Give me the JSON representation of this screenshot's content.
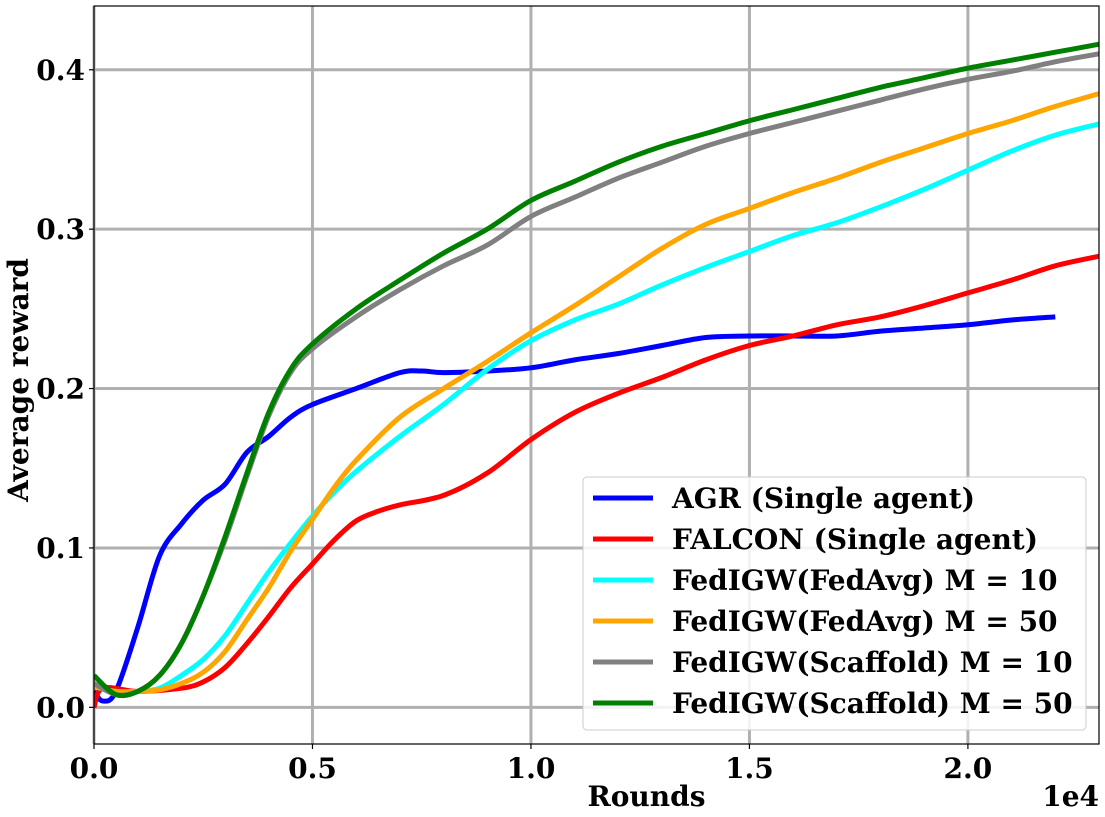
{
  "chart_data": {
    "type": "line",
    "title": "",
    "xlabel": "Rounds",
    "ylabel": "Average reward",
    "x_scale_note": "1e4",
    "xlim": [
      0,
      2.3
    ],
    "ylim": [
      -0.023,
      0.44
    ],
    "grid": true,
    "legend_position": "lower-right",
    "x_ticks": [
      0.0,
      0.5,
      1.0,
      1.5,
      2.0
    ],
    "x_tick_labels": [
      "0.0",
      "0.5",
      "1.0",
      "1.5",
      "2.0"
    ],
    "y_ticks": [
      0.0,
      0.1,
      0.2,
      0.3,
      0.4
    ],
    "y_tick_labels": [
      "0.0",
      "0.1",
      "0.2",
      "0.3",
      "0.4"
    ],
    "series": [
      {
        "name": "AGR (Single agent)",
        "color": "#0000ff",
        "points": [
          [
            0,
            0.01
          ],
          [
            0.02,
            0.004
          ],
          [
            0.05,
            0.01
          ],
          [
            0.1,
            0.05
          ],
          [
            0.15,
            0.095
          ],
          [
            0.2,
            0.115
          ],
          [
            0.25,
            0.13
          ],
          [
            0.3,
            0.14
          ],
          [
            0.35,
            0.16
          ],
          [
            0.4,
            0.17
          ],
          [
            0.45,
            0.182
          ],
          [
            0.5,
            0.19
          ],
          [
            0.6,
            0.2
          ],
          [
            0.7,
            0.21
          ],
          [
            0.75,
            0.211
          ],
          [
            0.8,
            0.21
          ],
          [
            0.9,
            0.211
          ],
          [
            1.0,
            0.213
          ],
          [
            1.1,
            0.218
          ],
          [
            1.2,
            0.222
          ],
          [
            1.3,
            0.227
          ],
          [
            1.4,
            0.232
          ],
          [
            1.5,
            0.233
          ],
          [
            1.6,
            0.233
          ],
          [
            1.7,
            0.233
          ],
          [
            1.8,
            0.236
          ],
          [
            1.9,
            0.238
          ],
          [
            2.0,
            0.24
          ],
          [
            2.1,
            0.243
          ],
          [
            2.2,
            0.245
          ]
        ]
      },
      {
        "name": "FALCON (Single agent)",
        "color": "#ff0000",
        "points": [
          [
            0,
            0.0
          ],
          [
            0.02,
            0.012
          ],
          [
            0.1,
            0.01
          ],
          [
            0.2,
            0.012
          ],
          [
            0.25,
            0.016
          ],
          [
            0.3,
            0.025
          ],
          [
            0.35,
            0.04
          ],
          [
            0.4,
            0.057
          ],
          [
            0.45,
            0.075
          ],
          [
            0.5,
            0.09
          ],
          [
            0.55,
            0.105
          ],
          [
            0.6,
            0.117
          ],
          [
            0.65,
            0.123
          ],
          [
            0.7,
            0.127
          ],
          [
            0.8,
            0.133
          ],
          [
            0.9,
            0.147
          ],
          [
            1.0,
            0.168
          ],
          [
            1.1,
            0.185
          ],
          [
            1.2,
            0.197
          ],
          [
            1.3,
            0.207
          ],
          [
            1.4,
            0.218
          ],
          [
            1.5,
            0.227
          ],
          [
            1.6,
            0.233
          ],
          [
            1.7,
            0.24
          ],
          [
            1.8,
            0.245
          ],
          [
            1.9,
            0.252
          ],
          [
            2.0,
            0.26
          ],
          [
            2.1,
            0.268
          ],
          [
            2.2,
            0.277
          ],
          [
            2.3,
            0.283
          ]
        ]
      },
      {
        "name": "FedIGW(FedAvg) M = 10",
        "color": "#00ffff",
        "points": [
          [
            0,
            0.013
          ],
          [
            0.05,
            0.01
          ],
          [
            0.1,
            0.01
          ],
          [
            0.15,
            0.012
          ],
          [
            0.2,
            0.02
          ],
          [
            0.25,
            0.03
          ],
          [
            0.3,
            0.045
          ],
          [
            0.35,
            0.065
          ],
          [
            0.4,
            0.085
          ],
          [
            0.45,
            0.103
          ],
          [
            0.5,
            0.12
          ],
          [
            0.55,
            0.135
          ],
          [
            0.6,
            0.148
          ],
          [
            0.7,
            0.17
          ],
          [
            0.8,
            0.19
          ],
          [
            0.9,
            0.212
          ],
          [
            1.0,
            0.23
          ],
          [
            1.1,
            0.243
          ],
          [
            1.2,
            0.253
          ],
          [
            1.3,
            0.265
          ],
          [
            1.4,
            0.276
          ],
          [
            1.5,
            0.286
          ],
          [
            1.6,
            0.296
          ],
          [
            1.7,
            0.304
          ],
          [
            1.8,
            0.314
          ],
          [
            1.9,
            0.325
          ],
          [
            2.0,
            0.337
          ],
          [
            2.1,
            0.349
          ],
          [
            2.2,
            0.359
          ],
          [
            2.3,
            0.366
          ]
        ]
      },
      {
        "name": "FedIGW(FedAvg) M = 50",
        "color": "#ffa500",
        "points": [
          [
            0,
            0.013
          ],
          [
            0.05,
            0.01
          ],
          [
            0.1,
            0.01
          ],
          [
            0.15,
            0.011
          ],
          [
            0.2,
            0.015
          ],
          [
            0.25,
            0.022
          ],
          [
            0.3,
            0.035
          ],
          [
            0.35,
            0.055
          ],
          [
            0.4,
            0.075
          ],
          [
            0.45,
            0.098
          ],
          [
            0.5,
            0.118
          ],
          [
            0.55,
            0.138
          ],
          [
            0.6,
            0.155
          ],
          [
            0.7,
            0.182
          ],
          [
            0.8,
            0.2
          ],
          [
            0.9,
            0.217
          ],
          [
            1.0,
            0.235
          ],
          [
            1.1,
            0.252
          ],
          [
            1.2,
            0.27
          ],
          [
            1.3,
            0.288
          ],
          [
            1.4,
            0.303
          ],
          [
            1.5,
            0.313
          ],
          [
            1.6,
            0.323
          ],
          [
            1.7,
            0.332
          ],
          [
            1.8,
            0.342
          ],
          [
            1.9,
            0.351
          ],
          [
            2.0,
            0.36
          ],
          [
            2.1,
            0.368
          ],
          [
            2.2,
            0.377
          ],
          [
            2.3,
            0.385
          ]
        ]
      },
      {
        "name": "FedIGW(Scaffold) M = 10",
        "color": "#808080",
        "points": [
          [
            0,
            0.015
          ],
          [
            0.05,
            0.008
          ],
          [
            0.1,
            0.01
          ],
          [
            0.15,
            0.02
          ],
          [
            0.2,
            0.04
          ],
          [
            0.25,
            0.07
          ],
          [
            0.3,
            0.105
          ],
          [
            0.35,
            0.145
          ],
          [
            0.4,
            0.183
          ],
          [
            0.45,
            0.21
          ],
          [
            0.5,
            0.225
          ],
          [
            0.6,
            0.245
          ],
          [
            0.7,
            0.262
          ],
          [
            0.8,
            0.277
          ],
          [
            0.9,
            0.29
          ],
          [
            1.0,
            0.308
          ],
          [
            1.1,
            0.32
          ],
          [
            1.2,
            0.332
          ],
          [
            1.3,
            0.342
          ],
          [
            1.4,
            0.352
          ],
          [
            1.5,
            0.36
          ],
          [
            1.6,
            0.367
          ],
          [
            1.7,
            0.374
          ],
          [
            1.8,
            0.381
          ],
          [
            1.9,
            0.388
          ],
          [
            2.0,
            0.394
          ],
          [
            2.1,
            0.399
          ],
          [
            2.2,
            0.405
          ],
          [
            2.3,
            0.41
          ]
        ]
      },
      {
        "name": "FedIGW(Scaffold) M = 50",
        "color": "#008000",
        "points": [
          [
            0,
            0.02
          ],
          [
            0.05,
            0.008
          ],
          [
            0.1,
            0.01
          ],
          [
            0.15,
            0.02
          ],
          [
            0.2,
            0.04
          ],
          [
            0.25,
            0.07
          ],
          [
            0.3,
            0.107
          ],
          [
            0.35,
            0.147
          ],
          [
            0.4,
            0.185
          ],
          [
            0.45,
            0.212
          ],
          [
            0.5,
            0.228
          ],
          [
            0.6,
            0.25
          ],
          [
            0.7,
            0.268
          ],
          [
            0.8,
            0.285
          ],
          [
            0.9,
            0.3
          ],
          [
            1.0,
            0.318
          ],
          [
            1.1,
            0.33
          ],
          [
            1.2,
            0.342
          ],
          [
            1.3,
            0.352
          ],
          [
            1.4,
            0.36
          ],
          [
            1.5,
            0.368
          ],
          [
            1.6,
            0.375
          ],
          [
            1.7,
            0.382
          ],
          [
            1.8,
            0.389
          ],
          [
            1.9,
            0.395
          ],
          [
            2.0,
            0.401
          ],
          [
            2.1,
            0.406
          ],
          [
            2.2,
            0.411
          ],
          [
            2.3,
            0.416
          ]
        ]
      }
    ]
  }
}
